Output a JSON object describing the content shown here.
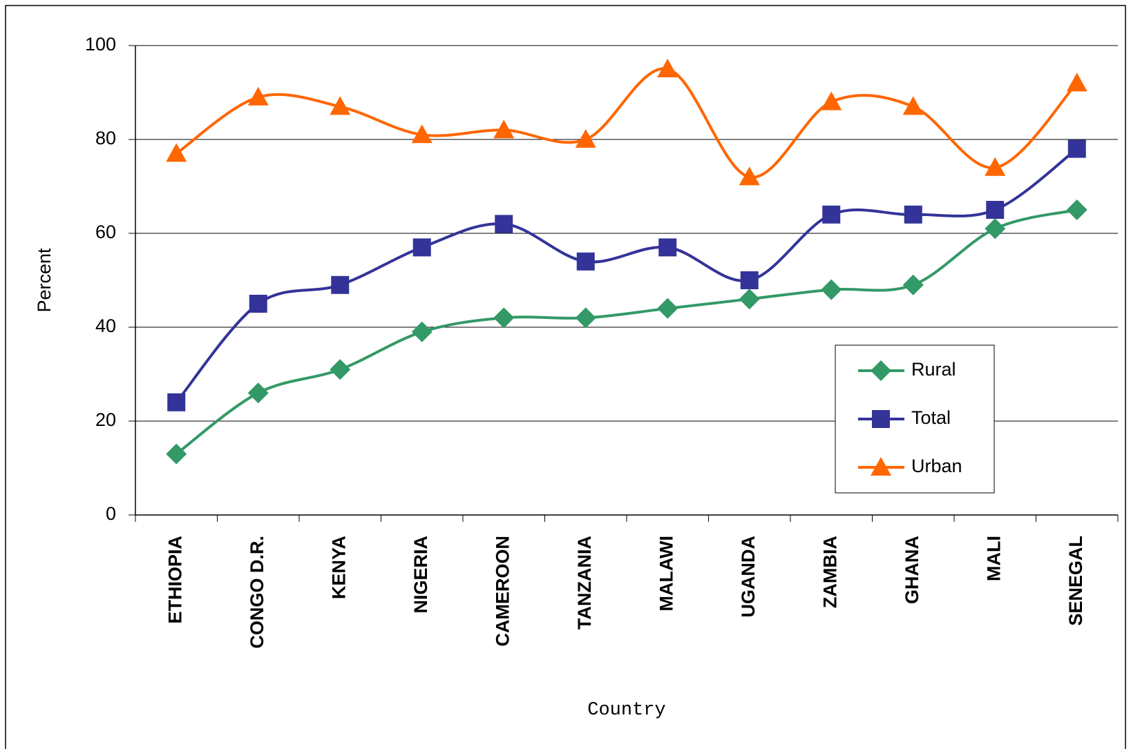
{
  "chart_data": {
    "type": "line",
    "smooth": true,
    "x_label": "Country",
    "y_label": "Percent",
    "categories": [
      "ETHIOPIA",
      "CONGO D.R.",
      "KENYA",
      "NIGERIA",
      "CAMEROON",
      "TANZANIA",
      "MALAWI",
      "UGANDA",
      "ZAMBIA",
      "GHANA",
      "MALI",
      "SENEGAL"
    ],
    "series": [
      {
        "name": "Rural",
        "color": "#339966",
        "marker": "diamond",
        "values": [
          13,
          26,
          31,
          39,
          42,
          42,
          44,
          46,
          48,
          49,
          61,
          65
        ]
      },
      {
        "name": "Total",
        "color": "#333399",
        "marker": "square",
        "values": [
          24,
          45,
          49,
          57,
          62,
          54,
          57,
          50,
          64,
          64,
          65,
          78
        ]
      },
      {
        "name": "Urban",
        "color": "#ff6600",
        "marker": "triangle",
        "values": [
          77,
          89,
          87,
          81,
          82,
          80,
          95,
          72,
          88,
          87,
          74,
          92
        ]
      }
    ],
    "ylim": [
      0,
      100
    ],
    "yticks": [
      0,
      20,
      40,
      60,
      80,
      100
    ],
    "grid": true,
    "legend": "right"
  }
}
